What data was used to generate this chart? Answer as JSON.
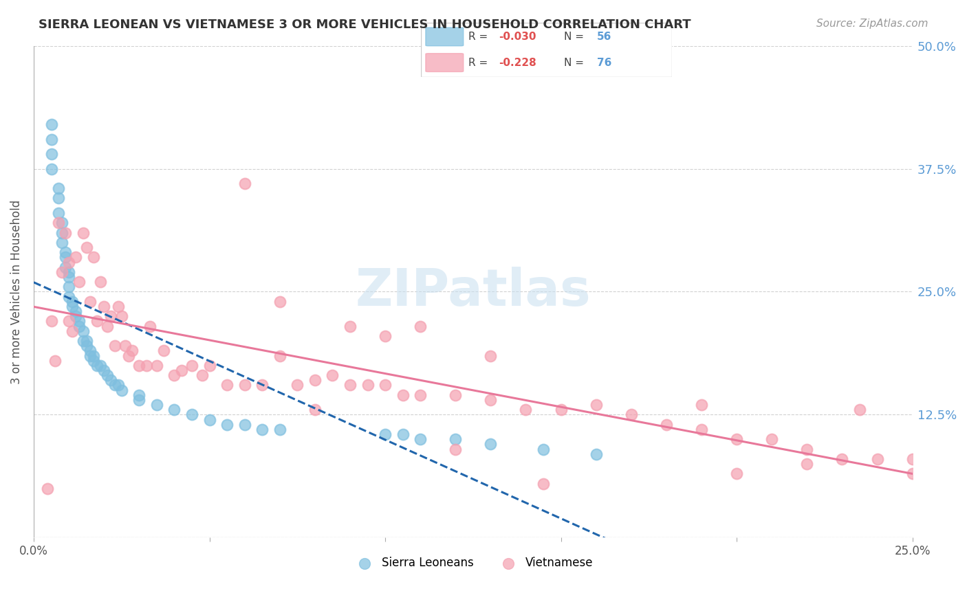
{
  "title": "SIERRA LEONEAN VS VIETNAMESE 3 OR MORE VEHICLES IN HOUSEHOLD CORRELATION CHART",
  "source": "Source: ZipAtlas.com",
  "ylabel": "3 or more Vehicles in Household",
  "x_min": 0.0,
  "x_max": 0.25,
  "y_min": 0.0,
  "y_max": 0.5,
  "x_ticks": [
    0.0,
    0.05,
    0.1,
    0.15,
    0.2,
    0.25
  ],
  "x_tick_labels": [
    "0.0%",
    "",
    "",
    "",
    "",
    "25.0%"
  ],
  "y_ticks_right": [
    0.5,
    0.375,
    0.25,
    0.125,
    0.0
  ],
  "y_tick_labels_right": [
    "50.0%",
    "37.5%",
    "25.0%",
    "12.5%",
    ""
  ],
  "watermark": "ZIPatlas",
  "sierra_color": "#7fbfdf",
  "viet_color": "#f4a0b0",
  "sierra_line_color": "#2166ac",
  "viet_line_color": "#e8789a",
  "sierra_points_x": [
    0.005,
    0.005,
    0.005,
    0.005,
    0.007,
    0.007,
    0.007,
    0.008,
    0.008,
    0.008,
    0.009,
    0.009,
    0.009,
    0.01,
    0.01,
    0.01,
    0.01,
    0.011,
    0.011,
    0.012,
    0.012,
    0.013,
    0.013,
    0.014,
    0.014,
    0.015,
    0.015,
    0.016,
    0.016,
    0.017,
    0.017,
    0.018,
    0.019,
    0.02,
    0.021,
    0.022,
    0.023,
    0.024,
    0.025,
    0.03,
    0.03,
    0.035,
    0.04,
    0.045,
    0.05,
    0.055,
    0.06,
    0.065,
    0.07,
    0.1,
    0.105,
    0.11,
    0.12,
    0.13,
    0.145,
    0.16
  ],
  "sierra_points_y": [
    0.42,
    0.405,
    0.39,
    0.375,
    0.355,
    0.345,
    0.33,
    0.32,
    0.31,
    0.3,
    0.29,
    0.285,
    0.275,
    0.27,
    0.265,
    0.255,
    0.245,
    0.24,
    0.235,
    0.23,
    0.225,
    0.22,
    0.215,
    0.21,
    0.2,
    0.2,
    0.195,
    0.19,
    0.185,
    0.185,
    0.18,
    0.175,
    0.175,
    0.17,
    0.165,
    0.16,
    0.155,
    0.155,
    0.15,
    0.145,
    0.14,
    0.135,
    0.13,
    0.125,
    0.12,
    0.115,
    0.115,
    0.11,
    0.11,
    0.105,
    0.105,
    0.1,
    0.1,
    0.095,
    0.09,
    0.085
  ],
  "viet_points_x": [
    0.004,
    0.005,
    0.006,
    0.007,
    0.008,
    0.009,
    0.01,
    0.01,
    0.011,
    0.012,
    0.013,
    0.014,
    0.015,
    0.016,
    0.017,
    0.018,
    0.019,
    0.02,
    0.021,
    0.022,
    0.023,
    0.024,
    0.025,
    0.026,
    0.027,
    0.028,
    0.03,
    0.032,
    0.033,
    0.035,
    0.037,
    0.04,
    0.042,
    0.045,
    0.048,
    0.05,
    0.055,
    0.06,
    0.065,
    0.07,
    0.075,
    0.08,
    0.085,
    0.09,
    0.095,
    0.1,
    0.105,
    0.11,
    0.12,
    0.13,
    0.14,
    0.15,
    0.16,
    0.17,
    0.18,
    0.19,
    0.2,
    0.21,
    0.22,
    0.23,
    0.24,
    0.25,
    0.06,
    0.07,
    0.09,
    0.11,
    0.13,
    0.19,
    0.2,
    0.22,
    0.235,
    0.25,
    0.08,
    0.1,
    0.12,
    0.145
  ],
  "viet_points_y": [
    0.05,
    0.22,
    0.18,
    0.32,
    0.27,
    0.31,
    0.22,
    0.28,
    0.21,
    0.285,
    0.26,
    0.31,
    0.295,
    0.24,
    0.285,
    0.22,
    0.26,
    0.235,
    0.215,
    0.225,
    0.195,
    0.235,
    0.225,
    0.195,
    0.185,
    0.19,
    0.175,
    0.175,
    0.215,
    0.175,
    0.19,
    0.165,
    0.17,
    0.175,
    0.165,
    0.175,
    0.155,
    0.155,
    0.155,
    0.185,
    0.155,
    0.16,
    0.165,
    0.155,
    0.155,
    0.155,
    0.145,
    0.145,
    0.145,
    0.14,
    0.13,
    0.13,
    0.135,
    0.125,
    0.115,
    0.11,
    0.1,
    0.1,
    0.09,
    0.08,
    0.08,
    0.08,
    0.36,
    0.24,
    0.215,
    0.215,
    0.185,
    0.135,
    0.065,
    0.075,
    0.13,
    0.065,
    0.13,
    0.205,
    0.09,
    0.055
  ]
}
